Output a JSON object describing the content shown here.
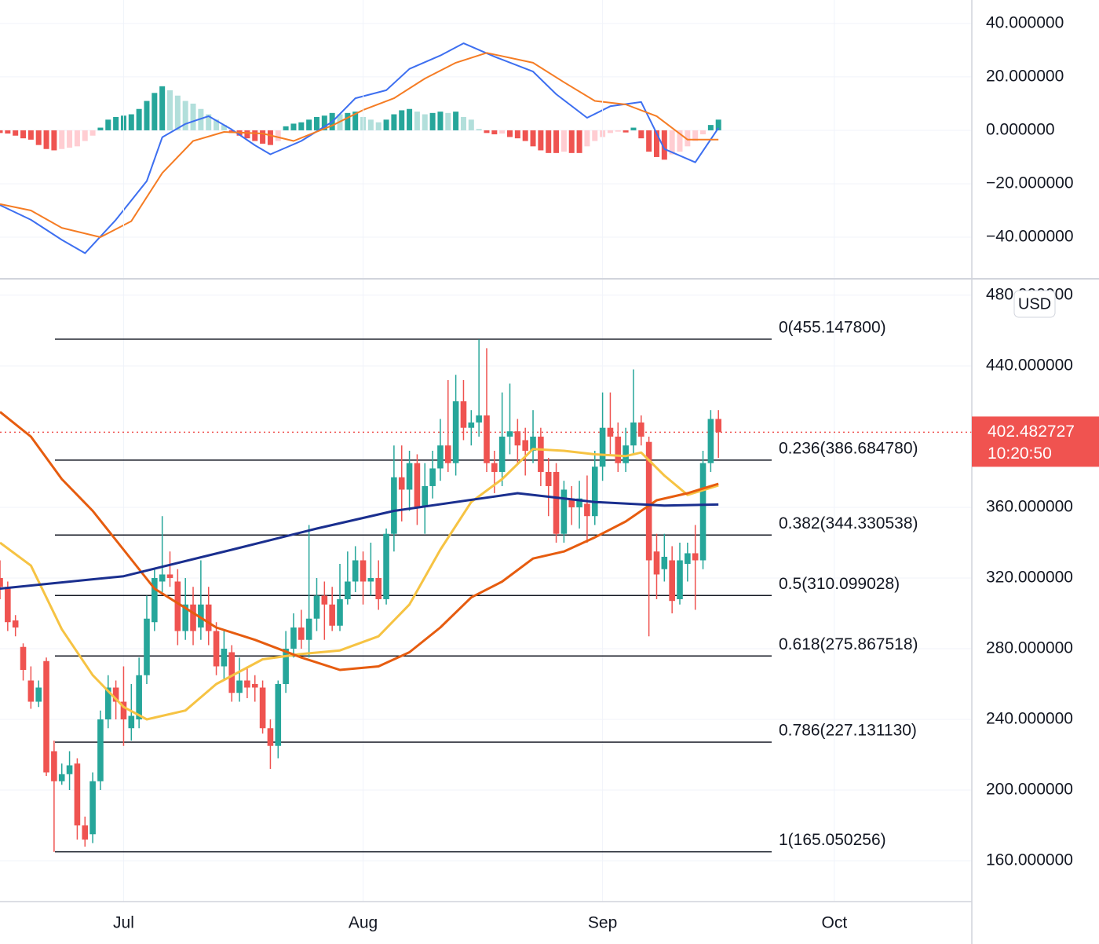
{
  "chart_data": [
    {
      "type": "macd",
      "ylim": [
        -55.6,
        48.8
      ],
      "yticks": [
        {
          "value": 40,
          "label": "40.000000"
        },
        {
          "value": 20,
          "label": "20.000000"
        },
        {
          "value": 0,
          "label": "0.000000"
        },
        {
          "value": -20,
          "label": "−20.000000"
        },
        {
          "value": -40,
          "label": "−40.000000"
        }
      ],
      "grid": true,
      "histogram": {
        "colors": {
          "up_rising": "#26a69a",
          "up_falling": "#b2dfdb",
          "down_falling": "#ef5350",
          "down_rising": "#ffcdd2"
        },
        "x": [
          0,
          1,
          2,
          3,
          4,
          5,
          6,
          7,
          8,
          9,
          10,
          11,
          12,
          13,
          14,
          15,
          16,
          17,
          18,
          19,
          20,
          21,
          22,
          23,
          24,
          25,
          26,
          27,
          28,
          29,
          30,
          31,
          32,
          33,
          34,
          35,
          36,
          37,
          38,
          39,
          40,
          41,
          42,
          43,
          44,
          45,
          46,
          47,
          48,
          49,
          50,
          51,
          52,
          53,
          54,
          55,
          56,
          57,
          58,
          59,
          60,
          61,
          62,
          63,
          64,
          65,
          66,
          67,
          68,
          69,
          70,
          71,
          72,
          73,
          74,
          75,
          76,
          77,
          78,
          79,
          80,
          81,
          82,
          83,
          84,
          85,
          86,
          87,
          88,
          89,
          90,
          91,
          92,
          93
        ],
        "values": [
          -1,
          -1.2,
          -2,
          -3,
          -3.5,
          -5.5,
          -7,
          -7.5,
          -7,
          -6.5,
          -6,
          -4,
          -2,
          1,
          4,
          5,
          5.5,
          6,
          8,
          11,
          14,
          16.5,
          15,
          13,
          11,
          10,
          8,
          6,
          4,
          2,
          -1,
          -2,
          -3,
          -4,
          -5,
          -5.5,
          -4,
          1.5,
          2.5,
          3,
          4,
          5,
          5.5,
          6.5,
          6,
          6.5,
          7,
          5,
          4,
          3,
          4,
          6,
          7.5,
          8,
          7,
          6,
          6.5,
          7,
          6.5,
          7,
          5,
          4,
          0.5,
          -1,
          -1.5,
          -1.2,
          -2.5,
          -3,
          -4,
          -6,
          -7.5,
          -8.5,
          -8.5,
          -8,
          -8.5,
          -8.5,
          -6,
          -4,
          -2.5,
          -1,
          -0.5,
          -0.8,
          1,
          -3,
          -8,
          -10,
          -11,
          -9,
          -8,
          -6,
          -4,
          -1.5,
          2,
          4
        ]
      },
      "series": [
        {
          "color": "#3d6ff0",
          "x": [
            0,
            4,
            8,
            11,
            15,
            19,
            21,
            24,
            27,
            30,
            33,
            35,
            39,
            43,
            46,
            50,
            53,
            57,
            60,
            64,
            69,
            72,
            76,
            79,
            83,
            86,
            90,
            93
          ],
          "values": [
            -28,
            -33.5,
            -41,
            -46,
            -33.5,
            -19,
            -2.6,
            2.4,
            5.3,
            0.3,
            -5.6,
            -9,
            -4,
            3.2,
            12,
            15,
            23,
            28,
            32.6,
            27.6,
            22,
            13.5,
            4.7,
            9,
            10.6,
            -7,
            -12,
            0.9
          ]
        },
        {
          "color": "#f57c24",
          "x": [
            0,
            4,
            8,
            13,
            17,
            21,
            25,
            29,
            34,
            38,
            43,
            47,
            51,
            55,
            59,
            63,
            69,
            73,
            77,
            81,
            85,
            89,
            93
          ],
          "values": [
            -27.6,
            -30,
            -36.5,
            -40,
            -34,
            -16,
            -4,
            -0.6,
            -1.2,
            -4,
            1.8,
            7.6,
            12,
            19.4,
            25.3,
            29,
            25.3,
            18,
            11,
            9.7,
            5.3,
            -3.5,
            -3.5
          ]
        }
      ]
    },
    {
      "type": "candlestick",
      "xlim": [
        0,
        125.8
      ],
      "xticks": [
        {
          "value": 16,
          "label": "Jul"
        },
        {
          "value": 47,
          "label": "Aug"
        },
        {
          "value": 78,
          "label": "Sep"
        },
        {
          "value": 108,
          "label": "Oct"
        }
      ],
      "ylim": [
        136.9,
        489.3
      ],
      "yticks": [
        {
          "value": 160,
          "label": "160.000000"
        },
        {
          "value": 200,
          "label": "200.000000"
        },
        {
          "value": 240,
          "label": "240.000000"
        },
        {
          "value": 280,
          "label": "280.000000"
        },
        {
          "value": 320,
          "label": "320.000000"
        },
        {
          "value": 360,
          "label": "360.000000"
        },
        {
          "value": 440,
          "label": "440.000000"
        },
        {
          "value": 480,
          "label": "480.000000"
        }
      ],
      "grid": true,
      "currency": "USD",
      "up_color": "#26a69a",
      "down_color": "#ef5350",
      "x": [
        0,
        1,
        2,
        3,
        4,
        5,
        6,
        7,
        8,
        9,
        10,
        11,
        12,
        13,
        14,
        15,
        16,
        17,
        18,
        19,
        20,
        21,
        22,
        23,
        24,
        25,
        26,
        27,
        28,
        29,
        30,
        31,
        32,
        33,
        34,
        35,
        36,
        37,
        38,
        39,
        40,
        41,
        42,
        43,
        44,
        45,
        46,
        47,
        48,
        49,
        50,
        51,
        52,
        53,
        54,
        55,
        56,
        57,
        58,
        59,
        60,
        61,
        62,
        63,
        64,
        65,
        66,
        67,
        68,
        69,
        70,
        71,
        72,
        73,
        74,
        75,
        76,
        77,
        78,
        79,
        80,
        81,
        82,
        83,
        84,
        85,
        86,
        87,
        88,
        89,
        90,
        91,
        92,
        93
      ],
      "open": [
        320,
        315,
        296,
        281,
        262,
        250,
        273,
        222,
        205,
        209,
        215,
        180,
        175,
        205,
        240,
        258,
        250,
        235,
        240,
        265,
        295,
        318,
        322,
        318,
        290,
        305,
        292,
        305,
        290,
        270,
        278,
        255,
        262,
        260,
        258,
        235,
        225,
        260,
        280,
        292,
        285,
        297,
        310,
        305,
        293,
        308,
        318,
        330,
        318,
        320,
        308,
        345,
        377,
        370,
        385,
        360,
        372,
        382,
        395,
        385,
        420,
        405,
        408,
        412,
        385,
        380,
        400,
        403,
        398,
        392,
        400,
        380,
        380,
        345,
        365,
        360,
        362,
        355,
        383,
        405,
        400,
        385,
        395,
        408,
        397,
        335,
        325,
        330,
        308,
        328,
        334,
        330,
        385,
        410
      ],
      "high": [
        330,
        318,
        299,
        283,
        270,
        262,
        275,
        228,
        215,
        222,
        218,
        185,
        210,
        245,
        265,
        262,
        270,
        260,
        275,
        310,
        325,
        355,
        335,
        325,
        320,
        315,
        330,
        315,
        295,
        290,
        282,
        275,
        270,
        265,
        262,
        240,
        262,
        290,
        300,
        302,
        350,
        320,
        318,
        315,
        328,
        335,
        338,
        335,
        340,
        330,
        348,
        395,
        395,
        392,
        390,
        385,
        392,
        410,
        432,
        435,
        432,
        415,
        455,
        450,
        392,
        425,
        430,
        410,
        405,
        415,
        405,
        388,
        385,
        375,
        372,
        375,
        378,
        392,
        425,
        425,
        408,
        405,
        438,
        412,
        400,
        345,
        345,
        338,
        340,
        340,
        350,
        392,
        415,
        415
      ],
      "low": [
        308,
        290,
        287,
        262,
        246,
        247,
        208,
        165,
        203,
        200,
        172,
        168,
        170,
        200,
        235,
        240,
        225,
        228,
        235,
        260,
        290,
        312,
        315,
        282,
        285,
        282,
        285,
        282,
        265,
        262,
        250,
        250,
        252,
        250,
        232,
        212,
        218,
        255,
        275,
        280,
        275,
        290,
        285,
        290,
        290,
        305,
        312,
        305,
        310,
        302,
        305,
        335,
        352,
        358,
        350,
        345,
        365,
        375,
        380,
        378,
        398,
        395,
        400,
        380,
        368,
        372,
        390,
        385,
        378,
        385,
        372,
        355,
        340,
        340,
        350,
        348,
        340,
        350,
        375,
        390,
        380,
        380,
        390,
        395,
        287,
        308,
        318,
        300,
        305,
        318,
        302,
        325,
        380,
        388
      ],
      "close": [
        315,
        295,
        292,
        268,
        250,
        258,
        210,
        205,
        209,
        214,
        180,
        172,
        205,
        240,
        258,
        250,
        240,
        242,
        265,
        297,
        320,
        322,
        320,
        290,
        305,
        290,
        305,
        290,
        270,
        280,
        255,
        262,
        258,
        258,
        235,
        225,
        260,
        280,
        292,
        285,
        297,
        310,
        305,
        293,
        308,
        318,
        330,
        318,
        320,
        308,
        345,
        377,
        370,
        385,
        360,
        372,
        382,
        395,
        385,
        420,
        405,
        408,
        412,
        385,
        380,
        400,
        403,
        395,
        392,
        400,
        380,
        372,
        345,
        370,
        360,
        365,
        355,
        383,
        405,
        400,
        385,
        395,
        408,
        400,
        330,
        322,
        332,
        307,
        330,
        334,
        330,
        385,
        410,
        402.482727
      ],
      "last_price": 402.482727,
      "countdown": "10:20:50",
      "last_color": "#f05350",
      "series": [
        {
          "color": "#f6c343",
          "x": [
            0,
            4,
            8,
            12,
            16,
            19,
            24,
            28,
            34,
            39,
            44,
            49,
            53,
            57,
            61,
            65,
            69,
            73,
            77,
            81,
            83,
            86,
            89,
            93
          ],
          "values": [
            340,
            327,
            291,
            265,
            247,
            240,
            245,
            260,
            274,
            277,
            279,
            287,
            305,
            336,
            363,
            376,
            393,
            392,
            390,
            389,
            391,
            378,
            367,
            372.4
          ]
        },
        {
          "color": "#e65c0f",
          "x": [
            0,
            4,
            8,
            12,
            16,
            20,
            24,
            28,
            33,
            39,
            44,
            49,
            53,
            57,
            61,
            65,
            69,
            73,
            77,
            81,
            85,
            89,
            93
          ],
          "values": [
            414,
            400,
            376,
            358,
            336,
            314,
            303,
            292,
            285,
            275,
            268,
            270,
            278,
            292,
            309,
            318,
            331,
            335,
            343,
            352,
            364,
            368,
            373.3
          ]
        },
        {
          "color": "#1a2f8f",
          "x": [
            0,
            16,
            30,
            41,
            51,
            67,
            77,
            86,
            93
          ],
          "values": [
            314,
            321,
            336,
            348,
            358,
            368,
            363,
            361,
            361.6
          ]
        }
      ],
      "fibonacci": [
        {
          "value": 455.1478,
          "label": "0(455.147800)"
        },
        {
          "value": 386.68478,
          "label": "0.236(386.684780)"
        },
        {
          "value": 344.330538,
          "label": "0.382(344.330538)"
        },
        {
          "value": 310.099028,
          "label": "0.5(310.099028)"
        },
        {
          "value": 275.867518,
          "label": "0.618(275.867518)"
        },
        {
          "value": 227.13113,
          "label": "0.786(227.131130)"
        },
        {
          "value": 165.050256,
          "label": "1(165.050256)"
        }
      ]
    }
  ]
}
